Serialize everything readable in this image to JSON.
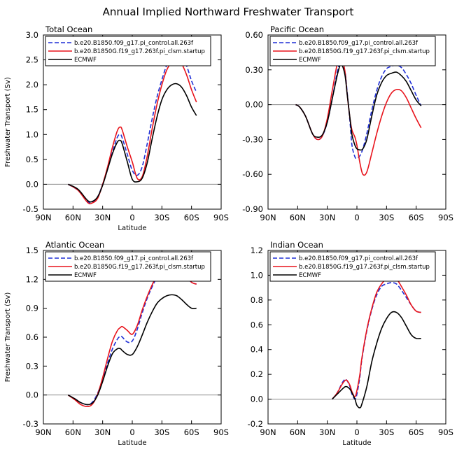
{
  "figure_title": "Annual Implied Northward Freshwater Transport",
  "colors": {
    "control": "#1f2fd6",
    "startup": "#e8141c",
    "ecmwf": "#000000",
    "zero_line": "#888888"
  },
  "chart_data": [
    {
      "type": "line",
      "title": "Total Ocean",
      "xlabel": "Latitude",
      "ylabel": "Freshwater Transport (Sv)",
      "x_ticks": [
        "90N",
        "60N",
        "30N",
        "0",
        "30S",
        "60S",
        "90S"
      ],
      "xlim": [
        90,
        -90
      ],
      "ylim": [
        -0.5,
        3.0
      ],
      "y_ticks": [
        "-0.5",
        "0.0",
        "0.5",
        "1.0",
        "1.5",
        "2.0",
        "2.5",
        "3.0"
      ],
      "legend": "top",
      "series": [
        {
          "name": "b.e20.B1850.f09_g17.pi_control.all.263f",
          "style": "dashed",
          "color_key": "control",
          "x": [
            65,
            55,
            45,
            40,
            35,
            30,
            25,
            20,
            15,
            12,
            10,
            5,
            0,
            -5,
            -10,
            -15,
            -20,
            -25,
            -30,
            -35,
            -40,
            -45,
            -50,
            -55,
            -60,
            -65
          ],
          "y": [
            0.0,
            -0.12,
            -0.35,
            -0.35,
            -0.25,
            0.0,
            0.3,
            0.65,
            0.95,
            1.0,
            0.92,
            0.6,
            0.28,
            0.18,
            0.35,
            0.8,
            1.3,
            1.75,
            2.1,
            2.4,
            2.58,
            2.62,
            2.55,
            2.38,
            2.08,
            1.85
          ]
        },
        {
          "name": "b.e20.B1850G.f19_g17.263f.pi_clsm.startup",
          "style": "solid",
          "color_key": "startup",
          "x": [
            65,
            55,
            45,
            40,
            35,
            30,
            25,
            20,
            15,
            12,
            10,
            5,
            0,
            -5,
            -10,
            -15,
            -20,
            -25,
            -30,
            -35,
            -40,
            -45,
            -50,
            -55,
            -60,
            -65
          ],
          "y": [
            0.0,
            -0.12,
            -0.37,
            -0.37,
            -0.28,
            0.0,
            0.35,
            0.75,
            1.08,
            1.15,
            1.08,
            0.75,
            0.45,
            0.12,
            0.15,
            0.55,
            1.1,
            1.6,
            2.0,
            2.3,
            2.45,
            2.5,
            2.42,
            2.2,
            1.9,
            1.65
          ]
        },
        {
          "name": "ECMWF",
          "style": "solid",
          "color_key": "ecmwf",
          "x": [
            65,
            55,
            45,
            40,
            35,
            30,
            25,
            20,
            15,
            12,
            10,
            5,
            0,
            -5,
            -10,
            -15,
            -20,
            -25,
            -30,
            -35,
            -40,
            -45,
            -50,
            -55,
            -60,
            -65
          ],
          "y": [
            0.0,
            -0.1,
            -0.33,
            -0.34,
            -0.25,
            -0.02,
            0.3,
            0.62,
            0.85,
            0.88,
            0.8,
            0.45,
            0.1,
            0.05,
            0.12,
            0.42,
            0.9,
            1.35,
            1.7,
            1.9,
            2.0,
            2.02,
            1.95,
            1.78,
            1.55,
            1.38
          ]
        }
      ]
    },
    {
      "type": "line",
      "title": "Pacific Ocean",
      "xlabel": "",
      "ylabel": "",
      "x_ticks": [
        "90N",
        "60N",
        "30N",
        "0",
        "30S",
        "60S",
        "90S"
      ],
      "xlim": [
        90,
        -90
      ],
      "ylim": [
        -0.9,
        0.6
      ],
      "y_ticks": [
        "-0.90",
        "-0.60",
        "-0.30",
        "0.00",
        "0.30",
        "0.60"
      ],
      "legend": "top",
      "series": [
        {
          "name": "b.e20.B1850.f09_g17.pi_control.all.263f",
          "style": "dashed",
          "color_key": "control",
          "x": [
            62,
            58,
            52,
            45,
            40,
            35,
            30,
            25,
            20,
            17,
            15,
            12,
            10,
            7,
            5,
            2,
            0,
            -3,
            -6,
            -10,
            -15,
            -20,
            -25,
            -30,
            -35,
            -40,
            -45,
            -50,
            -55,
            -60,
            -65
          ],
          "y": [
            0.0,
            -0.02,
            -0.1,
            -0.25,
            -0.3,
            -0.27,
            -0.15,
            0.05,
            0.28,
            0.36,
            0.36,
            0.28,
            0.12,
            -0.15,
            -0.35,
            -0.45,
            -0.46,
            -0.44,
            -0.38,
            -0.25,
            -0.05,
            0.12,
            0.24,
            0.31,
            0.33,
            0.34,
            0.32,
            0.26,
            0.18,
            0.08,
            -0.01
          ]
        },
        {
          "name": "b.e20.B1850G.f19_g17.263f.pi_clsm.startup",
          "style": "solid",
          "color_key": "startup",
          "x": [
            62,
            58,
            52,
            45,
            40,
            35,
            30,
            25,
            20,
            17,
            15,
            12,
            10,
            7,
            5,
            2,
            0,
            -3,
            -6,
            -10,
            -15,
            -20,
            -25,
            -30,
            -35,
            -40,
            -45,
            -50,
            -55,
            -60,
            -65
          ],
          "y": [
            0.0,
            -0.02,
            -0.1,
            -0.25,
            -0.3,
            -0.27,
            -0.12,
            0.12,
            0.35,
            0.42,
            0.4,
            0.28,
            0.1,
            -0.12,
            -0.22,
            -0.28,
            -0.35,
            -0.5,
            -0.6,
            -0.58,
            -0.42,
            -0.25,
            -0.1,
            0.02,
            0.1,
            0.13,
            0.12,
            0.06,
            -0.03,
            -0.12,
            -0.2
          ]
        },
        {
          "name": "ECMWF",
          "style": "solid",
          "color_key": "ecmwf",
          "x": [
            62,
            58,
            52,
            45,
            40,
            35,
            30,
            25,
            20,
            17,
            15,
            12,
            10,
            7,
            5,
            2,
            0,
            -3,
            -6,
            -10,
            -15,
            -20,
            -25,
            -30,
            -35,
            -40,
            -45,
            -50,
            -55,
            -60,
            -65
          ],
          "y": [
            0.0,
            -0.02,
            -0.1,
            -0.25,
            -0.28,
            -0.26,
            -0.15,
            0.05,
            0.25,
            0.34,
            0.34,
            0.25,
            0.1,
            -0.12,
            -0.26,
            -0.35,
            -0.38,
            -0.39,
            -0.38,
            -0.3,
            -0.1,
            0.08,
            0.19,
            0.25,
            0.27,
            0.28,
            0.25,
            0.2,
            0.12,
            0.04,
            -0.01
          ]
        }
      ]
    },
    {
      "type": "line",
      "title": "Atlantic Ocean",
      "xlabel": "Latitude",
      "ylabel": "Freshwater Transport (Sv)",
      "x_ticks": [
        "90N",
        "60N",
        "30N",
        "0",
        "30S",
        "60S",
        "90S"
      ],
      "xlim": [
        90,
        -90
      ],
      "ylim": [
        -0.3,
        1.5
      ],
      "y_ticks": [
        "-0.3",
        "0.0",
        "0.3",
        "0.6",
        "0.9",
        "1.2",
        "1.5"
      ],
      "legend": "top",
      "series": [
        {
          "name": "b.e20.B1850.f09_g17.pi_control.all.263f",
          "style": "dashed",
          "color_key": "control",
          "x": [
            65,
            58,
            52,
            45,
            40,
            35,
            30,
            25,
            20,
            15,
            12,
            10,
            5,
            0,
            -5,
            -10,
            -15,
            -20,
            -25,
            -30,
            -35,
            -40,
            -45,
            -50,
            -55,
            -60,
            -65
          ],
          "y": [
            0.0,
            -0.04,
            -0.08,
            -0.1,
            -0.07,
            0.02,
            0.16,
            0.33,
            0.48,
            0.58,
            0.61,
            0.6,
            0.55,
            0.56,
            0.68,
            0.85,
            1.0,
            1.12,
            1.22,
            1.29,
            1.34,
            1.35,
            1.33,
            1.28,
            1.22,
            1.17,
            1.15
          ]
        },
        {
          "name": "b.e20.B1850G.f19_g17.263f.pi_clsm.startup",
          "style": "solid",
          "color_key": "startup",
          "x": [
            65,
            58,
            52,
            45,
            40,
            35,
            30,
            25,
            20,
            15,
            12,
            10,
            5,
            0,
            -5,
            -10,
            -15,
            -20,
            -25,
            -30,
            -35,
            -40,
            -45,
            -50,
            -55,
            -60,
            -65
          ],
          "y": [
            0.0,
            -0.05,
            -0.1,
            -0.12,
            -0.09,
            0.01,
            0.18,
            0.38,
            0.56,
            0.67,
            0.7,
            0.71,
            0.67,
            0.63,
            0.72,
            0.88,
            1.02,
            1.14,
            1.24,
            1.31,
            1.36,
            1.38,
            1.36,
            1.3,
            1.23,
            1.17,
            1.15
          ]
        },
        {
          "name": "ECMWF",
          "style": "solid",
          "color_key": "ecmwf",
          "x": [
            65,
            58,
            52,
            45,
            40,
            35,
            30,
            25,
            20,
            15,
            12,
            10,
            5,
            0,
            -5,
            -10,
            -15,
            -20,
            -25,
            -30,
            -35,
            -40,
            -45,
            -50,
            -55,
            -60,
            -65
          ],
          "y": [
            0.0,
            -0.04,
            -0.08,
            -0.1,
            -0.08,
            0.0,
            0.14,
            0.3,
            0.43,
            0.48,
            0.48,
            0.46,
            0.42,
            0.42,
            0.5,
            0.62,
            0.75,
            0.86,
            0.95,
            1.0,
            1.03,
            1.04,
            1.03,
            0.99,
            0.94,
            0.9,
            0.9
          ]
        }
      ]
    },
    {
      "type": "line",
      "title": "Indian Ocean",
      "xlabel": "Latitude",
      "ylabel": "",
      "x_ticks": [
        "90N",
        "60N",
        "30N",
        "0",
        "30S",
        "60S",
        "90S"
      ],
      "xlim": [
        90,
        -90
      ],
      "ylim": [
        -0.2,
        1.2
      ],
      "y_ticks": [
        "-0.2",
        "0.0",
        "0.2",
        "0.4",
        "0.6",
        "0.8",
        "1.0",
        "1.2"
      ],
      "legend": "top",
      "series": [
        {
          "name": "b.e20.B1850.f09_g17.pi_control.all.263f",
          "style": "dashed",
          "color_key": "control",
          "x": [
            25,
            20,
            15,
            12,
            10,
            7,
            5,
            2,
            0,
            -3,
            -5,
            -10,
            -15,
            -20,
            -25,
            -30,
            -35,
            -40,
            -45,
            -50,
            -55,
            -60,
            -65
          ],
          "y": [
            0.0,
            0.05,
            0.13,
            0.16,
            0.15,
            0.1,
            0.04,
            0.0,
            0.04,
            0.18,
            0.32,
            0.55,
            0.72,
            0.84,
            0.91,
            0.93,
            0.94,
            0.93,
            0.88,
            0.82,
            0.76,
            0.71,
            0.7
          ]
        },
        {
          "name": "b.e20.B1850G.f19_g17.263f.pi_clsm.startup",
          "style": "solid",
          "color_key": "startup",
          "x": [
            25,
            20,
            15,
            12,
            10,
            7,
            5,
            2,
            0,
            -3,
            -5,
            -10,
            -15,
            -20,
            -25,
            -30,
            -35,
            -40,
            -45,
            -50,
            -55,
            -60,
            -65
          ],
          "y": [
            0.0,
            0.05,
            0.12,
            0.15,
            0.15,
            0.11,
            0.06,
            0.02,
            0.07,
            0.2,
            0.33,
            0.56,
            0.73,
            0.86,
            0.93,
            0.97,
            0.98,
            0.97,
            0.91,
            0.84,
            0.76,
            0.71,
            0.7
          ]
        },
        {
          "name": "ECMWF",
          "style": "solid",
          "color_key": "ecmwf",
          "x": [
            25,
            20,
            15,
            12,
            10,
            7,
            5,
            2,
            0,
            -3,
            -5,
            -10,
            -15,
            -20,
            -25,
            -30,
            -35,
            -40,
            -45,
            -50,
            -55,
            -60,
            -65
          ],
          "y": [
            0.0,
            0.04,
            0.08,
            0.1,
            0.1,
            0.08,
            0.05,
            0.0,
            -0.05,
            -0.07,
            -0.04,
            0.1,
            0.3,
            0.45,
            0.57,
            0.65,
            0.7,
            0.7,
            0.66,
            0.59,
            0.52,
            0.49,
            0.49
          ]
        }
      ]
    }
  ]
}
